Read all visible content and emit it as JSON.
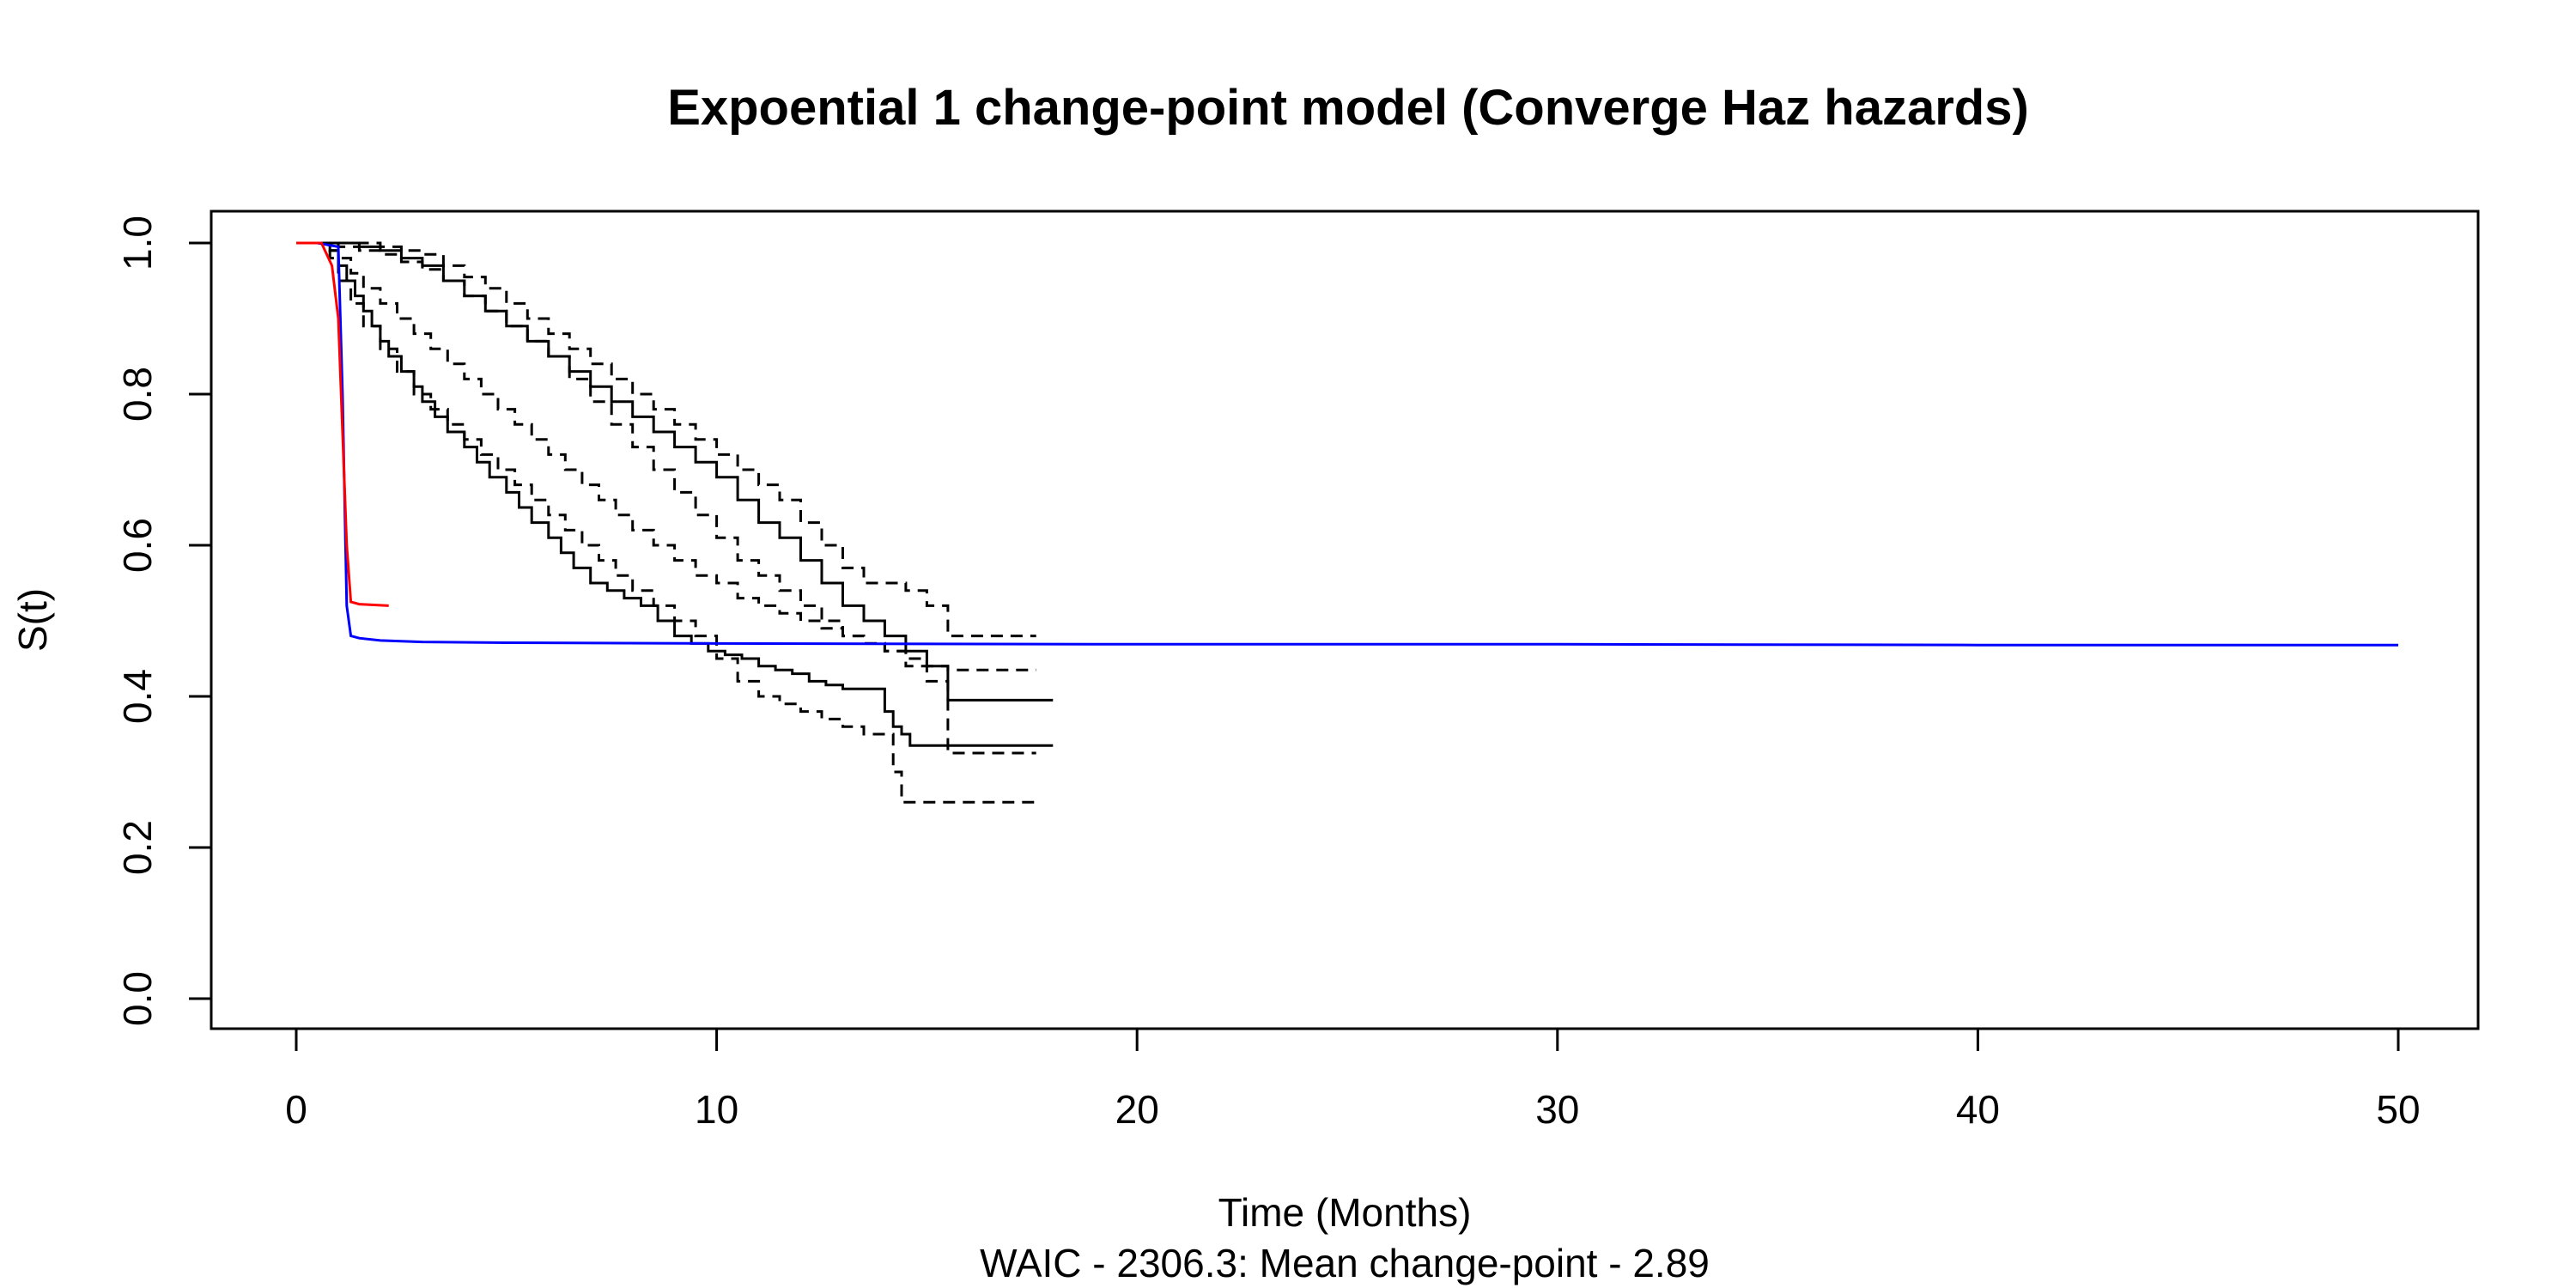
{
  "chart_data": {
    "type": "line",
    "title": "Expoential 1 change-point model (Converge Haz hazards)",
    "xlabel": "Time (Months)",
    "ylabel": "S(t)",
    "subtitle": "WAIC - 2306.3: Mean change-point - 2.89",
    "xlim": [
      0,
      50
    ],
    "ylim": [
      0,
      1
    ],
    "xticks": [
      0,
      10,
      20,
      30,
      40,
      50
    ],
    "yticks": [
      0.0,
      0.2,
      0.4,
      0.6,
      0.8,
      1.0
    ],
    "ytick_labels": [
      "0.0",
      "0.2",
      "0.4",
      "0.6",
      "0.8",
      "1.0"
    ],
    "grid": false,
    "legend": "none",
    "series": [
      {
        "color": "#000000",
        "dash": "solid",
        "step": true,
        "x": [
          0.5,
          0.8,
          1.0,
          1.2,
          1.4,
          1.6,
          1.8,
          2.0,
          2.2,
          2.5,
          2.8,
          3.0,
          3.3,
          3.6,
          4.0,
          4.3,
          4.6,
          5.0,
          5.3,
          5.6,
          6.0,
          6.3,
          6.6,
          7.0,
          7.4,
          7.8,
          8.2,
          8.6,
          9.0,
          9.4,
          9.8,
          10.2,
          10.6,
          11.0,
          11.4,
          11.8,
          12.2,
          12.6,
          13.0,
          13.5,
          14.0,
          14.2,
          14.4,
          14.6,
          15.0,
          15.5,
          18.0
        ],
        "y": [
          1.0,
          0.99,
          0.97,
          0.95,
          0.93,
          0.91,
          0.89,
          0.87,
          0.85,
          0.83,
          0.81,
          0.79,
          0.77,
          0.75,
          0.73,
          0.71,
          0.69,
          0.67,
          0.65,
          0.63,
          0.61,
          0.59,
          0.57,
          0.55,
          0.54,
          0.53,
          0.52,
          0.5,
          0.48,
          0.47,
          0.46,
          0.455,
          0.45,
          0.44,
          0.435,
          0.43,
          0.42,
          0.415,
          0.41,
          0.41,
          0.38,
          0.36,
          0.35,
          0.335,
          0.335,
          0.335,
          0.335
        ]
      },
      {
        "color": "#000000",
        "dash": "dashed",
        "step": true,
        "x": [
          0.5,
          0.8,
          1.0,
          1.3,
          1.6,
          2.0,
          2.4,
          2.8,
          3.2,
          3.6,
          4.0,
          4.4,
          4.8,
          5.2,
          5.6,
          6.0,
          6.4,
          6.8,
          7.2,
          7.6,
          8.0,
          8.5,
          9.0,
          9.5,
          10.0,
          10.5,
          11.0,
          11.5,
          12.0,
          12.5,
          13.0,
          13.5,
          14.0,
          14.2,
          14.4,
          15.0,
          15.5,
          17.6
        ],
        "y": [
          1.0,
          0.98,
          0.95,
          0.92,
          0.89,
          0.86,
          0.83,
          0.8,
          0.78,
          0.76,
          0.74,
          0.72,
          0.7,
          0.68,
          0.66,
          0.64,
          0.62,
          0.6,
          0.58,
          0.56,
          0.54,
          0.52,
          0.5,
          0.48,
          0.45,
          0.42,
          0.4,
          0.39,
          0.38,
          0.37,
          0.36,
          0.35,
          0.35,
          0.3,
          0.26,
          0.26,
          0.26,
          0.26
        ]
      },
      {
        "color": "#000000",
        "dash": "dashed",
        "step": true,
        "x": [
          0.5,
          0.8,
          1.0,
          1.3,
          1.6,
          2.0,
          2.4,
          2.8,
          3.2,
          3.6,
          4.0,
          4.4,
          4.8,
          5.2,
          5.6,
          6.0,
          6.4,
          6.8,
          7.2,
          7.6,
          8.0,
          8.5,
          9.0,
          9.5,
          10.0,
          10.5,
          11.0,
          11.5,
          12.0,
          12.5,
          13.0,
          13.5,
          14.0,
          14.5,
          15.0,
          15.5,
          17.6
        ],
        "y": [
          1.0,
          0.99,
          0.98,
          0.96,
          0.94,
          0.92,
          0.9,
          0.88,
          0.86,
          0.84,
          0.82,
          0.8,
          0.78,
          0.76,
          0.74,
          0.72,
          0.7,
          0.68,
          0.66,
          0.64,
          0.62,
          0.6,
          0.58,
          0.56,
          0.55,
          0.53,
          0.52,
          0.51,
          0.5,
          0.49,
          0.48,
          0.47,
          0.46,
          0.44,
          0.42,
          0.325,
          0.325
        ]
      },
      {
        "color": "#000000",
        "dash": "solid",
        "step": true,
        "x": [
          0.5,
          1.0,
          1.5,
          2.0,
          2.5,
          3.0,
          3.5,
          4.0,
          4.5,
          5.0,
          5.5,
          6.0,
          6.5,
          7.0,
          7.5,
          8.0,
          8.5,
          9.0,
          9.5,
          10.0,
          10.5,
          11.0,
          11.5,
          12.0,
          12.5,
          13.0,
          13.5,
          14.0,
          14.5,
          15.0,
          15.5,
          18.0
        ],
        "y": [
          1.0,
          1.0,
          0.995,
          0.99,
          0.98,
          0.97,
          0.95,
          0.93,
          0.91,
          0.89,
          0.87,
          0.85,
          0.83,
          0.81,
          0.79,
          0.77,
          0.75,
          0.73,
          0.71,
          0.69,
          0.66,
          0.63,
          0.61,
          0.58,
          0.55,
          0.52,
          0.5,
          0.48,
          0.46,
          0.44,
          0.395,
          0.395
        ]
      },
      {
        "color": "#000000",
        "dash": "dashed",
        "step": true,
        "x": [
          0.5,
          1.0,
          1.5,
          2.0,
          2.5,
          3.0,
          3.5,
          4.0,
          4.5,
          5.0,
          5.5,
          6.0,
          6.5,
          7.0,
          7.5,
          8.0,
          8.5,
          9.0,
          9.5,
          10.0,
          10.5,
          11.0,
          11.5,
          12.0,
          12.5,
          13.0,
          13.5,
          14.0,
          14.5,
          15.0,
          15.5,
          17.6
        ],
        "y": [
          1.0,
          1.0,
          1.0,
          0.995,
          0.99,
          0.985,
          0.97,
          0.955,
          0.94,
          0.92,
          0.9,
          0.88,
          0.86,
          0.84,
          0.82,
          0.8,
          0.78,
          0.76,
          0.74,
          0.72,
          0.7,
          0.68,
          0.66,
          0.63,
          0.6,
          0.57,
          0.55,
          0.55,
          0.54,
          0.52,
          0.48,
          0.48
        ]
      },
      {
        "color": "#000000",
        "dash": "dashed",
        "step": true,
        "x": [
          0.5,
          1.0,
          1.5,
          2.0,
          2.5,
          3.0,
          3.5,
          4.0,
          4.5,
          5.0,
          5.5,
          6.0,
          6.5,
          7.0,
          7.5,
          8.0,
          8.5,
          9.0,
          9.5,
          10.0,
          10.5,
          11.0,
          11.5,
          12.0,
          12.5,
          13.0,
          13.5,
          14.0,
          14.5,
          15.0,
          15.5,
          17.6
        ],
        "y": [
          1.0,
          0.995,
          0.99,
          0.985,
          0.975,
          0.965,
          0.95,
          0.93,
          0.91,
          0.89,
          0.87,
          0.85,
          0.82,
          0.79,
          0.76,
          0.73,
          0.7,
          0.67,
          0.64,
          0.61,
          0.58,
          0.56,
          0.54,
          0.52,
          0.5,
          0.48,
          0.47,
          0.46,
          0.45,
          0.44,
          0.435,
          0.435
        ]
      },
      {
        "color": "#0000ff",
        "dash": "solid",
        "step": false,
        "x": [
          0.5,
          1.0,
          1.1,
          1.2,
          1.3,
          1.5,
          2.0,
          3.0,
          5.0,
          10.0,
          20.0,
          30.0,
          40.0,
          50.0
        ],
        "y": [
          1.0,
          0.995,
          0.8,
          0.52,
          0.48,
          0.477,
          0.474,
          0.472,
          0.471,
          0.47,
          0.469,
          0.469,
          0.468,
          0.468
        ]
      },
      {
        "color": "#ff0000",
        "dash": "solid",
        "step": false,
        "x": [
          0.0,
          0.6,
          0.85,
          1.0,
          1.1,
          1.2,
          1.3,
          1.5,
          2.2
        ],
        "y": [
          1.0,
          1.0,
          0.97,
          0.9,
          0.75,
          0.6,
          0.525,
          0.522,
          0.52
        ]
      }
    ]
  }
}
